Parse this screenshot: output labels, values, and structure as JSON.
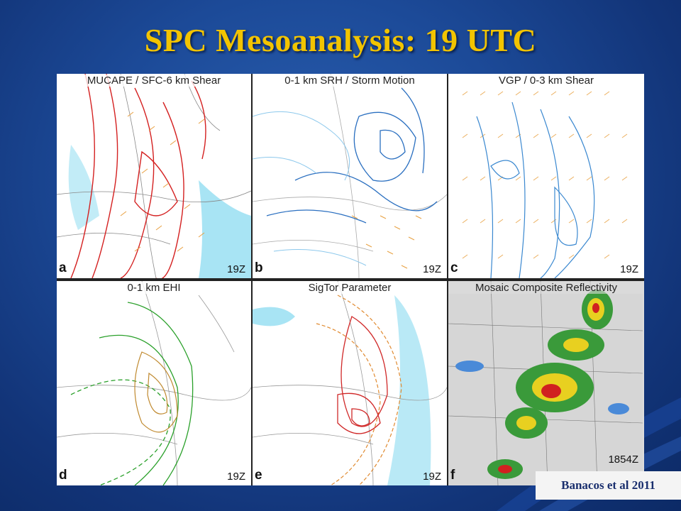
{
  "title": "SPC Mesoanalysis: 19 UTC",
  "credit": "Banacos et al 2011",
  "panels": [
    {
      "title": "MUCAPE / SFC-6 km Shear",
      "label": "a",
      "time": "19Z"
    },
    {
      "title": "0-1 km SRH / Storm Motion",
      "label": "b",
      "time": "19Z"
    },
    {
      "title": "VGP / 0-3 km Shear",
      "label": "c",
      "time": "19Z"
    },
    {
      "title": "0-1 km EHI",
      "label": "d",
      "time": "19Z"
    },
    {
      "title": "SigTor Parameter",
      "label": "e",
      "time": "19Z"
    },
    {
      "title": "Mosaic Composite Reflectivity",
      "label": "f",
      "time": "1854Z"
    }
  ],
  "colors": {
    "title": "#f2c400",
    "cape_contour": "#d42020",
    "srh_contour": "#2a6fc0",
    "vgp_contour": "#3a88d0",
    "ehi_contour": "#2aa02a",
    "ehi_inner": "#c08a30",
    "sigtor_contour": "#d02828",
    "sigtor_outer": "#e08a30",
    "barbs": "#e8a040",
    "shade": "#8fd8f0"
  }
}
